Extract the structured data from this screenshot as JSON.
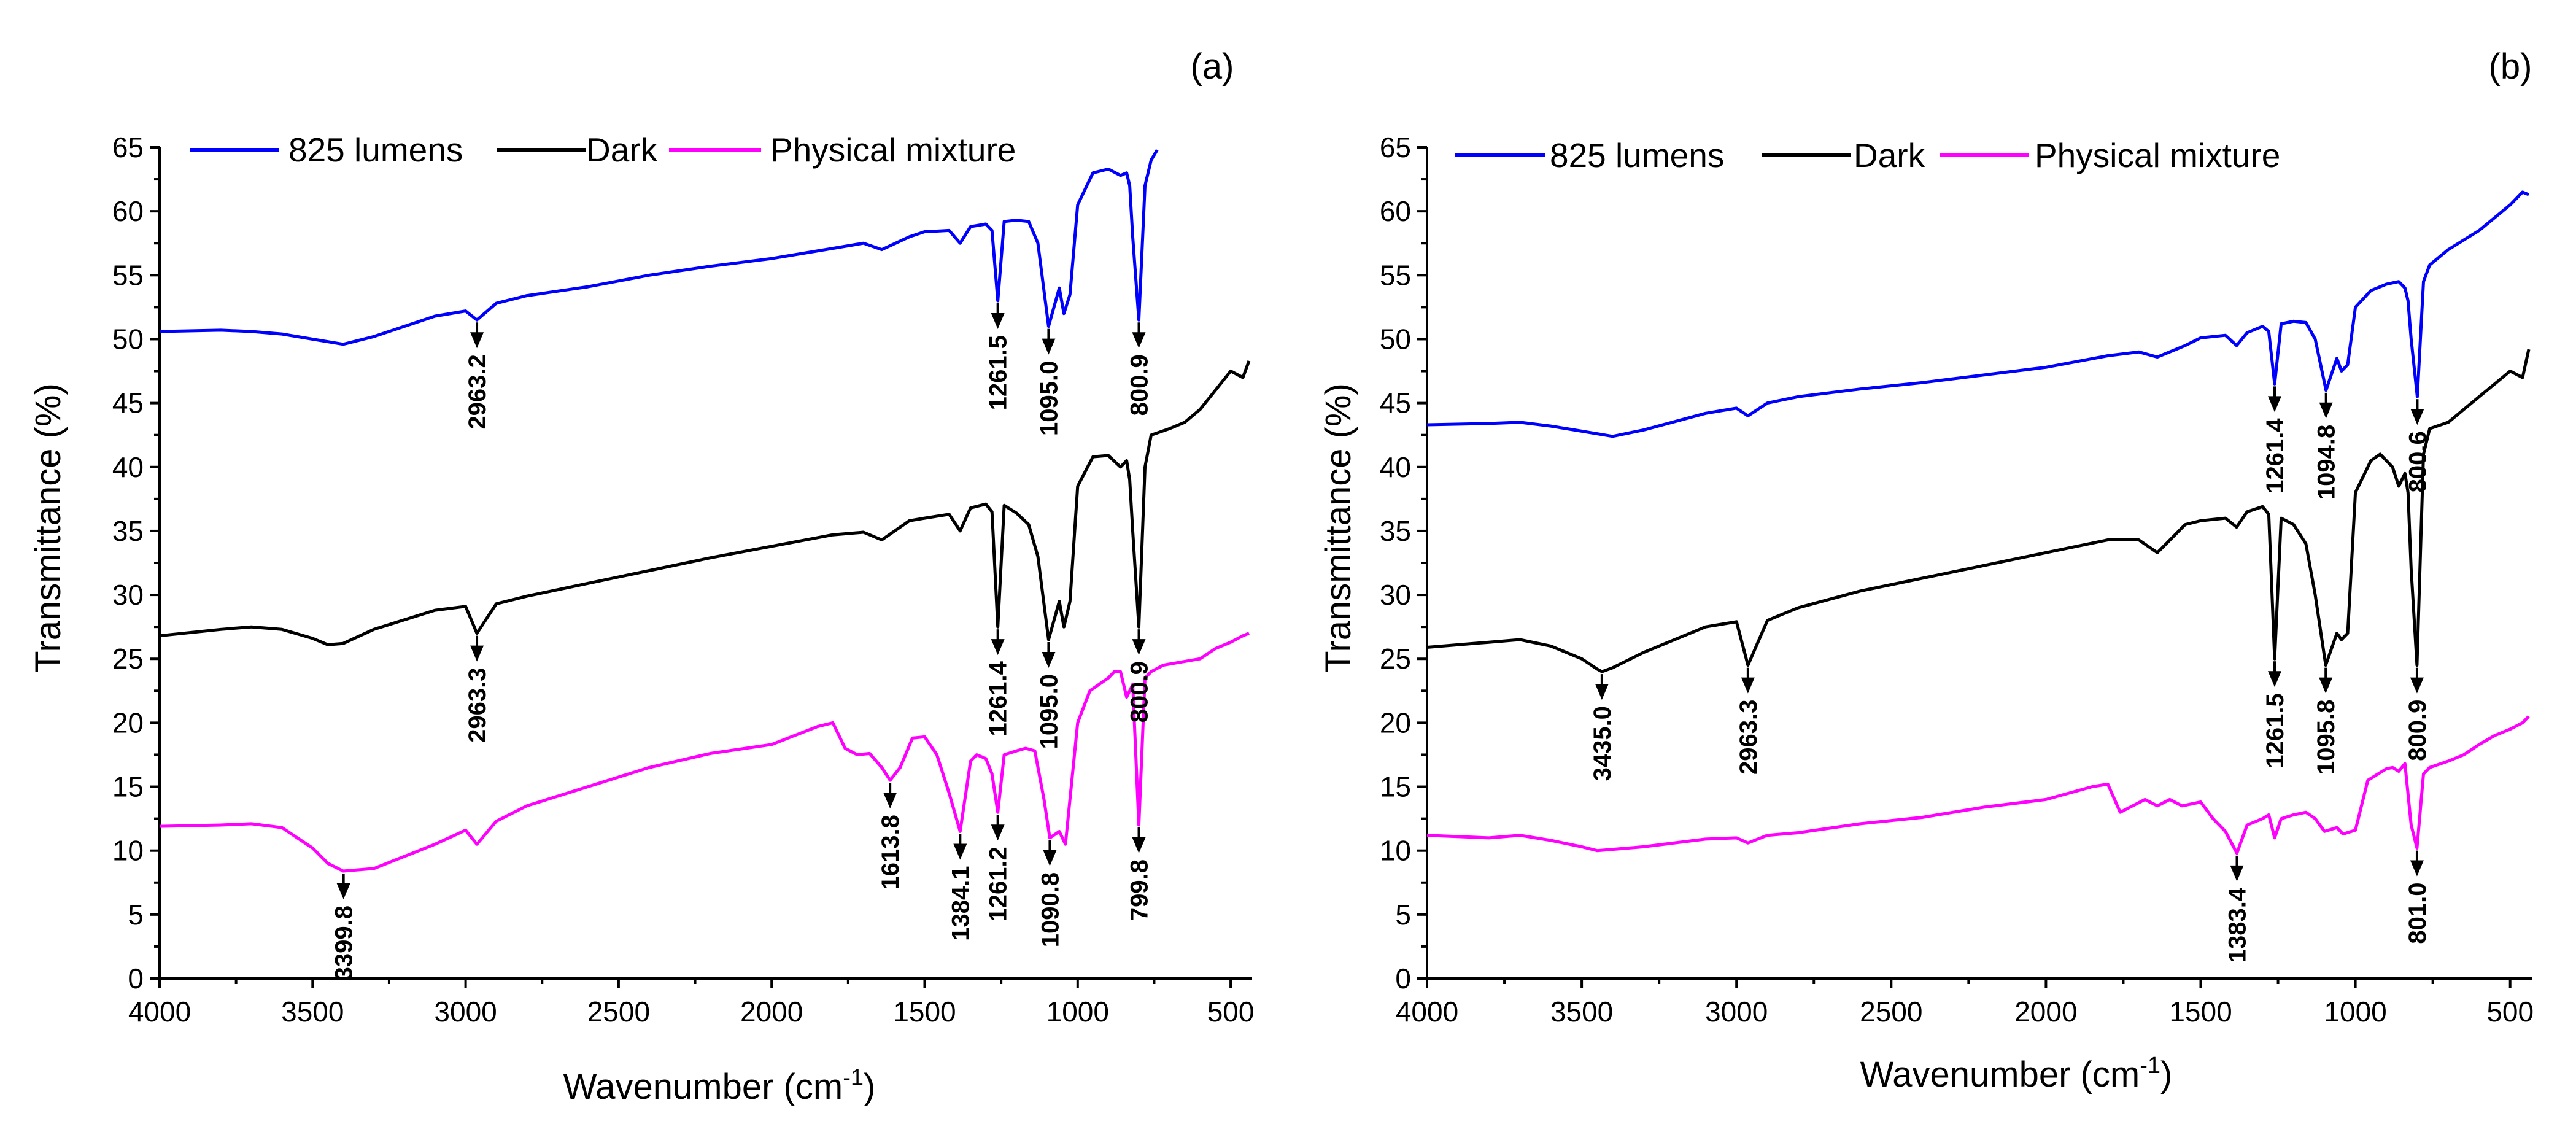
{
  "chart_data": [
    {
      "type": "line",
      "panel_label": "(a)",
      "title": "",
      "xlabel": "Wavenumber (cm",
      "xlabel_sup": "-1",
      "xlabel_close": ")",
      "ylabel": "Transmittance (%)",
      "xlim": [
        4000,
        430
      ],
      "ylim": [
        0,
        65
      ],
      "xticks": [
        "4000",
        "3500",
        "3000",
        "2500",
        "2000",
        "1500",
        "1000",
        "500"
      ],
      "yticks": [
        "0",
        "5",
        "10",
        "15",
        "20",
        "25",
        "30",
        "35",
        "40",
        "45",
        "50",
        "55",
        "60",
        "65"
      ],
      "legend": {
        "placement": "top-left",
        "entries": [
          "825 lumens",
          "Dark",
          "Physical mixture"
        ]
      },
      "series": [
        {
          "name": "825 lumens",
          "color": "#0000ff",
          "x": [
            4000,
            3800,
            3700,
            3600,
            3500,
            3400,
            3300,
            3100,
            3000,
            2963,
            2900,
            2800,
            2600,
            2400,
            2200,
            2000,
            1800,
            1700,
            1640,
            1550,
            1500,
            1420,
            1384,
            1350,
            1300,
            1280,
            1261,
            1240,
            1200,
            1160,
            1130,
            1095,
            1060,
            1045,
            1025,
            1000,
            950,
            900,
            860,
            840,
            830,
            820,
            800,
            780,
            760,
            740
          ],
          "y": [
            50.6,
            50.7,
            50.6,
            50.4,
            50.0,
            49.6,
            50.2,
            51.8,
            52.2,
            51.5,
            52.8,
            53.4,
            54.1,
            55.0,
            55.7,
            56.3,
            57.1,
            57.5,
            57.0,
            58.0,
            58.4,
            58.5,
            57.5,
            58.8,
            59.0,
            58.5,
            53.0,
            59.2,
            59.3,
            59.2,
            57.5,
            51.0,
            54.0,
            52.0,
            53.5,
            60.5,
            63.0,
            63.3,
            62.8,
            63.0,
            62.0,
            58.0,
            51.5,
            62.0,
            64.0,
            64.8
          ]
        },
        {
          "name": "Dark",
          "color": "#000000",
          "x": [
            4000,
            3800,
            3700,
            3600,
            3500,
            3450,
            3400,
            3300,
            3100,
            3000,
            2963,
            2900,
            2800,
            2600,
            2400,
            2200,
            2000,
            1800,
            1700,
            1640,
            1550,
            1500,
            1420,
            1384,
            1350,
            1300,
            1280,
            1261,
            1240,
            1200,
            1160,
            1130,
            1095,
            1060,
            1045,
            1025,
            1000,
            950,
            900,
            860,
            840,
            830,
            820,
            800,
            780,
            760,
            700,
            650,
            600,
            550,
            500,
            460,
            440
          ],
          "y": [
            26.8,
            27.3,
            27.5,
            27.3,
            26.6,
            26.1,
            26.2,
            27.3,
            28.8,
            29.1,
            27.0,
            29.3,
            29.9,
            30.9,
            31.9,
            32.9,
            33.8,
            34.7,
            34.9,
            34.3,
            35.8,
            36.0,
            36.3,
            35.0,
            36.8,
            37.1,
            36.5,
            27.5,
            37.0,
            36.4,
            35.5,
            33.0,
            26.5,
            29.5,
            27.5,
            29.5,
            38.5,
            40.8,
            40.9,
            40.0,
            40.5,
            39.0,
            35.0,
            27.5,
            40.0,
            42.5,
            43.0,
            43.5,
            44.5,
            46.0,
            47.5,
            47.0,
            48.3
          ]
        },
        {
          "name": "Physical mixture",
          "color": "#ff00ff",
          "x": [
            4000,
            3800,
            3700,
            3600,
            3500,
            3450,
            3400,
            3300,
            3100,
            3000,
            2963,
            2900,
            2800,
            2600,
            2400,
            2200,
            2000,
            1850,
            1800,
            1760,
            1720,
            1680,
            1640,
            1613,
            1580,
            1540,
            1500,
            1460,
            1420,
            1384,
            1350,
            1330,
            1300,
            1280,
            1261,
            1240,
            1200,
            1170,
            1140,
            1110,
            1091,
            1060,
            1040,
            1000,
            960,
            900,
            880,
            860,
            840,
            820,
            800,
            780,
            760,
            720,
            650,
            600,
            550,
            500,
            460,
            440
          ],
          "y": [
            11.9,
            12.0,
            12.1,
            11.8,
            10.2,
            9.0,
            8.4,
            8.6,
            10.5,
            11.6,
            10.5,
            12.3,
            13.5,
            15.0,
            16.5,
            17.6,
            18.3,
            19.7,
            20.0,
            18.0,
            17.5,
            17.6,
            16.5,
            15.5,
            16.5,
            18.8,
            18.9,
            17.5,
            14.5,
            11.5,
            17.0,
            17.5,
            17.2,
            16.0,
            13.0,
            17.5,
            17.8,
            18.0,
            17.8,
            14.0,
            11.0,
            11.5,
            10.5,
            20.0,
            22.5,
            23.5,
            24.0,
            24.0,
            22.0,
            23.0,
            12.0,
            23.5,
            24.0,
            24.5,
            24.8,
            25.0,
            25.8,
            26.3,
            26.8,
            27.0
          ]
        }
      ],
      "annotations": [
        {
          "text": "2963.2",
          "series": 0,
          "x": 2963
        },
        {
          "text": "1261.5",
          "series": 0,
          "x": 1261
        },
        {
          "text": "1095.0",
          "series": 0,
          "x": 1095
        },
        {
          "text": "800.9",
          "series": 0,
          "x": 800
        },
        {
          "text": "2963.3",
          "series": 1,
          "x": 2963
        },
        {
          "text": "1261.4",
          "series": 1,
          "x": 1261
        },
        {
          "text": "1095.0",
          "series": 1,
          "x": 1095
        },
        {
          "text": "800.9",
          "series": 1,
          "x": 800
        },
        {
          "text": "3399.8",
          "series": 2,
          "x": 3399
        },
        {
          "text": "1613.8",
          "series": 2,
          "x": 1613
        },
        {
          "text": "1384.1",
          "series": 2,
          "x": 1384
        },
        {
          "text": "1261.2",
          "series": 2,
          "x": 1261
        },
        {
          "text": "1090.8",
          "series": 2,
          "x": 1091
        },
        {
          "text": "799.8",
          "series": 2,
          "x": 800
        }
      ]
    },
    {
      "type": "line",
      "panel_label": "(b)",
      "title": "",
      "xlabel": "Wavenumber (cm",
      "xlabel_sup": "-1",
      "xlabel_close": ")",
      "ylabel": "Transmittance (%)",
      "xlim": [
        4000,
        430
      ],
      "ylim": [
        0,
        65
      ],
      "xticks": [
        "4000",
        "3500",
        "3000",
        "2500",
        "2000",
        "1500",
        "1000",
        "500"
      ],
      "yticks": [
        "0",
        "5",
        "10",
        "15",
        "20",
        "25",
        "30",
        "35",
        "40",
        "45",
        "50",
        "55",
        "60",
        "65"
      ],
      "legend": {
        "placement": "top-left",
        "entries": [
          "825 lumens",
          "Dark",
          "Physical mixture"
        ]
      },
      "series": [
        {
          "name": "825 lumens",
          "color": "#0000ff",
          "x": [
            4000,
            3800,
            3700,
            3600,
            3500,
            3400,
            3300,
            3100,
            3000,
            2963,
            2900,
            2800,
            2600,
            2400,
            2200,
            2000,
            1800,
            1700,
            1640,
            1550,
            1500,
            1420,
            1384,
            1350,
            1300,
            1280,
            1261,
            1240,
            1200,
            1160,
            1130,
            1095,
            1060,
            1045,
            1025,
            1000,
            950,
            900,
            860,
            840,
            830,
            820,
            800,
            780,
            760,
            700,
            600,
            500,
            460,
            440
          ],
          "y": [
            43.3,
            43.4,
            43.5,
            43.2,
            42.8,
            42.4,
            42.9,
            44.2,
            44.6,
            44.0,
            45.0,
            45.5,
            46.1,
            46.6,
            47.2,
            47.8,
            48.7,
            49.0,
            48.6,
            49.5,
            50.1,
            50.3,
            49.5,
            50.5,
            51.0,
            50.6,
            46.5,
            51.2,
            51.4,
            51.3,
            50.0,
            46.0,
            48.5,
            47.5,
            48.0,
            52.5,
            53.8,
            54.3,
            54.5,
            54.0,
            53.0,
            50.0,
            45.5,
            54.5,
            55.8,
            57.0,
            58.5,
            60.5,
            61.5,
            61.3
          ]
        },
        {
          "name": "Dark",
          "color": "#000000",
          "x": [
            4000,
            3800,
            3700,
            3600,
            3500,
            3450,
            3435,
            3400,
            3300,
            3100,
            3000,
            2963,
            2900,
            2800,
            2600,
            2400,
            2200,
            2000,
            1800,
            1700,
            1640,
            1550,
            1500,
            1420,
            1384,
            1350,
            1300,
            1280,
            1261,
            1240,
            1200,
            1160,
            1130,
            1096,
            1060,
            1045,
            1025,
            1000,
            950,
            920,
            880,
            860,
            840,
            830,
            820,
            801,
            780,
            760,
            700,
            650,
            600,
            550,
            500,
            460,
            440
          ],
          "y": [
            25.9,
            26.3,
            26.5,
            26.0,
            25.0,
            24.2,
            24.0,
            24.3,
            25.5,
            27.5,
            27.9,
            24.5,
            28.0,
            29.0,
            30.3,
            31.3,
            32.3,
            33.3,
            34.3,
            34.3,
            33.3,
            35.5,
            35.8,
            36.0,
            35.3,
            36.5,
            36.9,
            36.3,
            25.0,
            36.0,
            35.5,
            34.0,
            30.0,
            24.5,
            27.0,
            26.5,
            27.0,
            38.0,
            40.5,
            41.0,
            40.0,
            38.5,
            39.5,
            38.0,
            32.0,
            24.5,
            41.0,
            43.0,
            43.5,
            44.5,
            45.5,
            46.5,
            47.5,
            47.0,
            49.2
          ]
        },
        {
          "name": "Physical mixture",
          "color": "#ff00ff",
          "x": [
            4000,
            3800,
            3700,
            3600,
            3500,
            3450,
            3400,
            3300,
            3100,
            3000,
            2963,
            2900,
            2800,
            2600,
            2400,
            2200,
            2000,
            1850,
            1800,
            1760,
            1720,
            1680,
            1640,
            1600,
            1560,
            1500,
            1460,
            1420,
            1383,
            1350,
            1300,
            1280,
            1261,
            1240,
            1200,
            1160,
            1130,
            1100,
            1060,
            1040,
            1000,
            960,
            900,
            880,
            860,
            840,
            820,
            801,
            780,
            760,
            700,
            650,
            600,
            550,
            500,
            460,
            440
          ],
          "y": [
            11.2,
            11.0,
            11.2,
            10.8,
            10.3,
            10.0,
            10.1,
            10.3,
            10.9,
            11.0,
            10.6,
            11.2,
            11.4,
            12.1,
            12.6,
            13.4,
            14.0,
            15.0,
            15.2,
            13.0,
            13.5,
            14.0,
            13.5,
            14.0,
            13.5,
            13.8,
            12.5,
            11.5,
            9.8,
            12.0,
            12.5,
            12.8,
            11.0,
            12.5,
            12.8,
            13.0,
            12.5,
            11.5,
            11.8,
            11.3,
            11.6,
            15.5,
            16.4,
            16.5,
            16.2,
            16.8,
            12.0,
            10.2,
            16.0,
            16.5,
            17.0,
            17.5,
            18.3,
            19.0,
            19.5,
            20.0,
            20.5
          ]
        }
      ],
      "annotations": [
        {
          "text": "1261.4",
          "series": 0,
          "x": 1261
        },
        {
          "text": "1094.8",
          "series": 0,
          "x": 1095
        },
        {
          "text": "800.6",
          "series": 0,
          "x": 800
        },
        {
          "text": "3435.0",
          "series": 1,
          "x": 3435
        },
        {
          "text": "2963.3",
          "series": 1,
          "x": 2963
        },
        {
          "text": "1261.5",
          "series": 1,
          "x": 1261
        },
        {
          "text": "1095.8",
          "series": 1,
          "x": 1096
        },
        {
          "text": "800.9",
          "series": 1,
          "x": 801
        },
        {
          "text": "1383.4",
          "series": 2,
          "x": 1383
        },
        {
          "text": "801.0",
          "series": 2,
          "x": 801
        }
      ]
    }
  ]
}
